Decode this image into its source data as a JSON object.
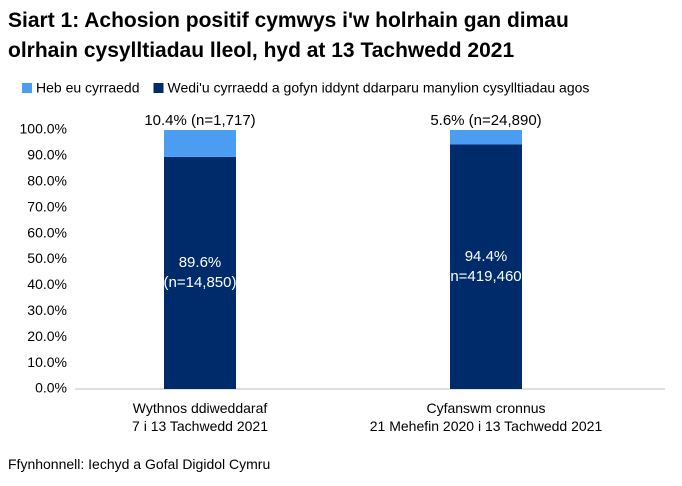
{
  "chart_data": {
    "type": "stacked_bar",
    "title": "Siart 1: Achosion positif cymwys i'w holrhain gan dimau\nolrhain cysylltiadau lleol, hyd at 13 Tachwedd 2021",
    "categories": [
      "Wythnos ddiweddaraf\n7 i 13 Tachwedd 2021",
      "Cyfanswm cronnus\n21 Mehefin 2020 i 13 Tachwedd 2021"
    ],
    "series": [
      {
        "name": "Heb eu cyrraedd",
        "color": "#4a9df0",
        "values": [
          10.4,
          5.6
        ],
        "value_labels": [
          "10.4% (n=1,717)",
          "5.6% (n=24,890)"
        ]
      },
      {
        "name": "Wedi'u cyrraedd a gofyn iddynt ddarparu manylion cysylltiadau agos",
        "color": "#002b6b",
        "values": [
          89.6,
          94.4
        ],
        "value_labels": [
          "89.6%\n(n=14,850)",
          "94.4%\n(n=419,460)"
        ]
      }
    ],
    "ylim": [
      0,
      100
    ],
    "yticks": [
      {
        "value": 0,
        "label": "0.0%"
      },
      {
        "value": 10,
        "label": "10.0%"
      },
      {
        "value": 20,
        "label": "20.0%"
      },
      {
        "value": 30,
        "label": "30.0%"
      },
      {
        "value": 40,
        "label": "40.0%"
      },
      {
        "value": 50,
        "label": "50.0%"
      },
      {
        "value": 60,
        "label": "60.0%"
      },
      {
        "value": 70,
        "label": "70.0%"
      },
      {
        "value": 80,
        "label": "80.0%"
      },
      {
        "value": 90,
        "label": "90.0%"
      },
      {
        "value": 100,
        "label": "100.0%"
      }
    ],
    "source": "Ffynhonnell: Iechyd a Gofal Digidol Cymru"
  }
}
